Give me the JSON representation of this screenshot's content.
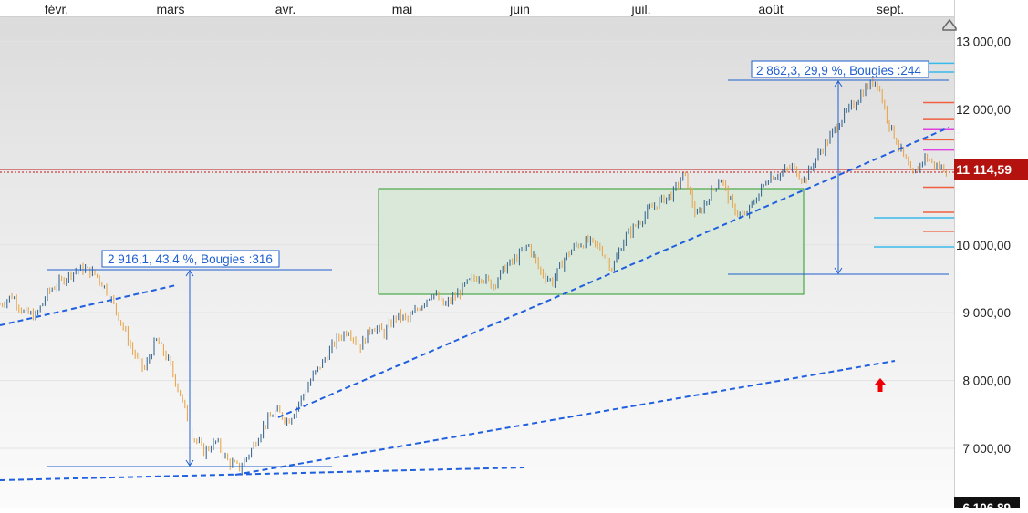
{
  "chart_data": {
    "type": "candlestick",
    "months": [
      "févr.",
      "mars",
      "avr.",
      "mai",
      "juin",
      "juil.",
      "août",
      "sept."
    ],
    "yticks": [
      "13 000,00",
      "12 000,00",
      "10 000,00",
      "9 000,00",
      "8 000,00",
      "7 000,00"
    ],
    "ylim": [
      6200,
      13300
    ],
    "last_price": {
      "label": "11 114,59",
      "value": 11114.59
    },
    "cut_label": {
      "label": "6 106,89",
      "value": 6106.89
    },
    "annotations": [
      {
        "text": "2 916,1, 43,4 %, Bougies :316",
        "low": 6710,
        "high": 9626
      },
      {
        "text": "2 862,3, 29,9 %, Bougies :244",
        "low": 9580,
        "high": 12442
      }
    ],
    "close_path": [
      [
        "févr.",
        9120
      ],
      [
        "févr.",
        9250
      ],
      [
        "févr.",
        9000
      ],
      [
        "févr.",
        8950
      ],
      [
        "févr.",
        9300
      ],
      [
        "févr.",
        9450
      ],
      [
        "mars",
        9600
      ],
      [
        "mars",
        9650
      ],
      [
        "mars",
        9560
      ],
      [
        "mars",
        9300
      ],
      [
        "mars",
        8900
      ],
      [
        "mars",
        8450
      ],
      [
        "mars",
        8150
      ],
      [
        "mars",
        8600
      ],
      [
        "mars",
        8300
      ],
      [
        "avr.",
        7800
      ],
      [
        "avr.",
        7200
      ],
      [
        "avr.",
        6950
      ],
      [
        "avr.",
        7100
      ],
      [
        "avr.",
        6800
      ],
      [
        "avr.",
        6710
      ],
      [
        "avr.",
        7000
      ],
      [
        "avr.",
        7350
      ],
      [
        "avr.",
        7550
      ],
      [
        "avr.",
        7400
      ],
      [
        "avr.",
        7700
      ],
      [
        "avr.",
        8050
      ],
      [
        "mai",
        8300
      ],
      [
        "mai",
        8600
      ],
      [
        "mai",
        8750
      ],
      [
        "mai",
        8500
      ],
      [
        "mai",
        8800
      ],
      [
        "mai",
        8700
      ],
      [
        "mai",
        8950
      ],
      [
        "mai",
        8900
      ],
      [
        "mai",
        9100
      ],
      [
        "mai",
        9300
      ],
      [
        "mai",
        9100
      ],
      [
        "mai",
        9250
      ],
      [
        "juin",
        9450
      ],
      [
        "juin",
        9550
      ],
      [
        "juin",
        9400
      ],
      [
        "juin",
        9650
      ],
      [
        "juin",
        9800
      ],
      [
        "juin",
        10000
      ],
      [
        "juin",
        9600
      ],
      [
        "juin",
        9450
      ],
      [
        "juin",
        9800
      ],
      [
        "juin",
        10000
      ],
      [
        "juin",
        10050
      ],
      [
        "juil.",
        9950
      ],
      [
        "juil.",
        9650
      ],
      [
        "juil.",
        10100
      ],
      [
        "juil.",
        10300
      ],
      [
        "juil.",
        10500
      ],
      [
        "juil.",
        10650
      ],
      [
        "juil.",
        10750
      ],
      [
        "juil.",
        11050
      ],
      [
        "juil.",
        10400
      ],
      [
        "juil.",
        10700
      ],
      [
        "juil.",
        11000
      ],
      [
        "août",
        10550
      ],
      [
        "août",
        10400
      ],
      [
        "août",
        10700
      ],
      [
        "août",
        11000
      ],
      [
        "août",
        11050
      ],
      [
        "août",
        11150
      ],
      [
        "août",
        10950
      ],
      [
        "août",
        11300
      ],
      [
        "août",
        11550
      ],
      [
        "août",
        11850
      ],
      [
        "août",
        12050
      ],
      [
        "sept.",
        12300
      ],
      [
        "sept.",
        12442
      ],
      [
        "sept.",
        11800
      ],
      [
        "sept.",
        11400
      ],
      [
        "sept.",
        11000
      ],
      [
        "sept.",
        11300
      ],
      [
        "sept.",
        11150
      ],
      [
        "sept.",
        11114
      ]
    ],
    "levels": [
      {
        "value": 12680,
        "color": "#39b9ec"
      },
      {
        "value": 12550,
        "color": "#39b9ec"
      },
      {
        "value": 12100,
        "color": "#f06040"
      },
      {
        "value": 11850,
        "color": "#f06040"
      },
      {
        "value": 11700,
        "color": "#e040e0"
      },
      {
        "value": 11550,
        "color": "#f06040"
      },
      {
        "value": 11400,
        "color": "#e040e0"
      },
      {
        "value": 10850,
        "color": "#f06040"
      },
      {
        "value": 10480,
        "color": "#f06040"
      },
      {
        "value": 10400,
        "color": "#39b9ec"
      },
      {
        "value": 10200,
        "color": "#f06040"
      },
      {
        "value": 9970,
        "color": "#39b9ec"
      }
    ],
    "colors": {
      "up": "#2f5f8a",
      "down": "#e8a040",
      "trend": "#1f5fe0",
      "measure": "#1f5fd0",
      "box_fill": "#d6e8d6",
      "box_stroke": "#2a9a2a",
      "price_bg": "#b3120f",
      "arrow": "#ee0000"
    }
  }
}
